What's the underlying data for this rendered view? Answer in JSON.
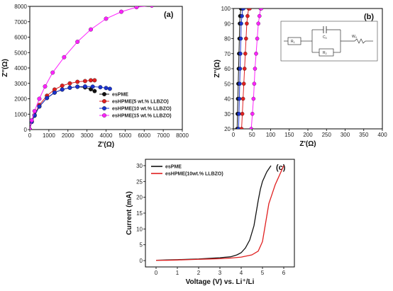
{
  "chart_data": [
    {
      "type": "scatter",
      "panel_label": "(a)",
      "xlabel": "Z'(Ω)",
      "ylabel": "Z''(Ω)",
      "xlim": [
        0,
        8000
      ],
      "ylim": [
        0,
        8000
      ],
      "xticks": [
        "0",
        "1000",
        "2000",
        "3000",
        "4000",
        "5000",
        "6000",
        "7000",
        "8000"
      ],
      "yticks": [
        "0",
        "1000",
        "2000",
        "3000",
        "4000",
        "5000",
        "6000",
        "7000",
        "8000"
      ],
      "legend_position": "bottom-right",
      "series": [
        {
          "name": "esPME",
          "color": "#111111",
          "x": [
            0,
            100,
            250,
            500,
            900,
            1300,
            1700,
            2100,
            2500,
            2900,
            3200,
            3400
          ],
          "y": [
            0,
            500,
            900,
            1500,
            2050,
            2400,
            2600,
            2720,
            2780,
            2740,
            2620,
            2500
          ]
        },
        {
          "name": "esHPME(5 wt.% LLBZO)",
          "color": "#e02020",
          "x": [
            0,
            100,
            250,
            500,
            900,
            1300,
            1700,
            2100,
            2500,
            2900,
            3200,
            3400
          ],
          "y": [
            0,
            520,
            950,
            1600,
            2200,
            2600,
            2850,
            3000,
            3100,
            3150,
            3200,
            3200
          ]
        },
        {
          "name": "esHPME(10 wt.% LLBZO)",
          "color": "#1a33cc",
          "x": [
            0,
            100,
            250,
            500,
            900,
            1300,
            1700,
            2100,
            2500,
            2900,
            3300,
            3700,
            4000,
            4200
          ],
          "y": [
            0,
            500,
            920,
            1500,
            2050,
            2400,
            2600,
            2720,
            2780,
            2800,
            2790,
            2750,
            2700,
            2650
          ]
        },
        {
          "name": "esHPME(15 wt.% LLBZO)",
          "color": "#ff22ff",
          "x": [
            0,
            100,
            250,
            500,
            800,
            1200,
            1800,
            2500,
            3200,
            4000,
            4800,
            5600,
            6400
          ],
          "y": [
            0,
            600,
            1200,
            2000,
            2800,
            3700,
            4700,
            5700,
            6500,
            7200,
            7650,
            7950,
            8050
          ]
        }
      ]
    },
    {
      "type": "scatter",
      "panel_label": "(b)",
      "xlabel": "Z'(Ω)",
      "ylabel": "Z''(Ω)",
      "xlim": [
        0,
        400
      ],
      "ylim": [
        20,
        100
      ],
      "xticks": [
        "0",
        "50",
        "100",
        "150",
        "200",
        "250",
        "300",
        "350",
        "400"
      ],
      "yticks": [
        "20",
        "30",
        "40",
        "50",
        "60",
        "70",
        "80",
        "90",
        "100"
      ],
      "equivalent_circuit": {
        "r1": "R",
        "r1_sub": "1",
        "cpe": "C",
        "cpe_sub": "0",
        "r2": "R",
        "r2_sub": "2",
        "w": "W",
        "w_sub": "0"
      },
      "series": [
        {
          "color": "#111111",
          "x": [
            10,
            11,
            12,
            13,
            14,
            15,
            16,
            17,
            18,
            20,
            22
          ],
          "y": [
            20,
            30,
            40,
            50,
            60,
            70,
            80,
            90,
            95,
            100,
            100
          ]
        },
        {
          "color": "#1a33cc",
          "x": [
            14,
            15,
            16,
            17,
            18,
            19,
            20,
            21,
            23,
            25,
            27
          ],
          "y": [
            20,
            30,
            40,
            50,
            60,
            70,
            80,
            90,
            95,
            100,
            100
          ]
        },
        {
          "color": "#e02020",
          "x": [
            22,
            24,
            26,
            28,
            30,
            32,
            34,
            36,
            38,
            41,
            44
          ],
          "y": [
            20,
            30,
            40,
            50,
            60,
            70,
            80,
            90,
            95,
            100,
            100
          ]
        },
        {
          "color": "#ff22ff",
          "x": [
            48,
            51,
            54,
            56,
            58,
            61,
            64,
            67,
            70,
            73,
            75
          ],
          "y": [
            20,
            30,
            40,
            50,
            60,
            70,
            80,
            90,
            95,
            100,
            100
          ]
        }
      ]
    },
    {
      "type": "line",
      "panel_label": "(c)",
      "xlabel": "Voltage (V) vs. Li⁺/Li",
      "ylabel": "Current (mA)",
      "xlim": [
        -0.5,
        6.5
      ],
      "ylim": [
        -2,
        32
      ],
      "xticks": [
        "0",
        "1",
        "2",
        "3",
        "4",
        "5",
        "6"
      ],
      "yticks": [
        "0",
        "5",
        "10",
        "15",
        "20",
        "25",
        "30"
      ],
      "legend_position": "top-left",
      "series": [
        {
          "name": "esPME",
          "color": "#111111",
          "x": [
            0,
            0.5,
            1,
            1.5,
            2,
            2.5,
            3,
            3.5,
            3.8,
            4.0,
            4.2,
            4.4,
            4.6,
            4.7,
            4.8,
            4.9,
            5.0,
            5.1,
            5.2,
            5.3,
            5.4
          ],
          "y": [
            0.1,
            0.2,
            0.3,
            0.4,
            0.5,
            0.7,
            0.9,
            1.2,
            1.8,
            2.5,
            4,
            6.5,
            11,
            15,
            19,
            22.5,
            25,
            26.5,
            28,
            29,
            30
          ]
        },
        {
          "name": "esHPME(10wt.% LLBZO)",
          "color": "#e02020",
          "x": [
            0,
            0.5,
            1,
            1.5,
            2,
            2.5,
            3,
            3.5,
            4,
            4.5,
            4.8,
            5.0,
            5.1,
            5.2,
            5.3,
            5.4,
            5.5,
            5.6,
            5.7,
            5.8,
            5.9,
            6.0
          ],
          "y": [
            0.1,
            0.1,
            0.2,
            0.3,
            0.4,
            0.5,
            0.6,
            0.8,
            1.1,
            1.8,
            3,
            6,
            10,
            14,
            18,
            20,
            22,
            24,
            25.5,
            27,
            28.5,
            30
          ]
        }
      ]
    }
  ]
}
